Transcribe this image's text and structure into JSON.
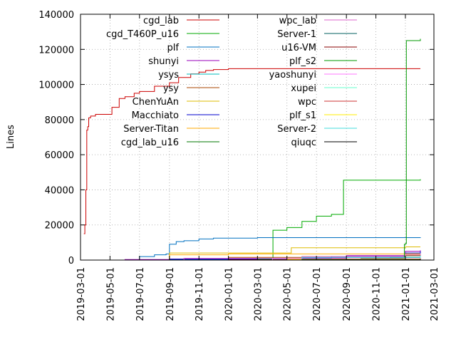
{
  "chart_data": {
    "type": "line",
    "ylabel": "Lines",
    "xlim": [
      "2019-03-01",
      "2021-03-01"
    ],
    "ylim": [
      0,
      140000
    ],
    "grid": true,
    "legend_position": "top (two columns)",
    "x_ticks": [
      "2019-03-01",
      "2019-05-01",
      "2019-07-01",
      "2019-09-01",
      "2019-11-01",
      "2020-01-01",
      "2020-03-01",
      "2020-05-01",
      "2020-07-01",
      "2020-09-01",
      "2020-11-01",
      "2021-01-01",
      "2021-03-01"
    ],
    "y_ticks": [
      "0",
      "20000",
      "40000",
      "60000",
      "80000",
      "100000",
      "120000",
      "140000"
    ],
    "series": [
      {
        "name": "cgd_lab",
        "color": "#cc0000",
        "points": [
          [
            "2019-03-08",
            15000
          ],
          [
            "2019-03-10",
            20000
          ],
          [
            "2019-03-12",
            40000
          ],
          [
            "2019-03-14",
            74000
          ],
          [
            "2019-03-16",
            76000
          ],
          [
            "2019-03-18",
            81000
          ],
          [
            "2019-03-22",
            82000
          ],
          [
            "2019-04-01",
            83000
          ],
          [
            "2019-05-01",
            83000
          ],
          [
            "2019-05-05",
            87000
          ],
          [
            "2019-05-20",
            92000
          ],
          [
            "2019-06-01",
            93000
          ],
          [
            "2019-06-20",
            95000
          ],
          [
            "2019-07-01",
            96000
          ],
          [
            "2019-08-01",
            99000
          ],
          [
            "2019-09-01",
            101000
          ],
          [
            "2019-09-20",
            104000
          ],
          [
            "2019-10-15",
            106000
          ],
          [
            "2019-11-01",
            107000
          ],
          [
            "2019-11-15",
            108000
          ],
          [
            "2019-12-01",
            108500
          ],
          [
            "2020-01-01",
            109000
          ],
          [
            "2021-02-01",
            109000
          ]
        ]
      },
      {
        "name": "cgd_T460P_u16",
        "color": "#00aa00",
        "points": [
          [
            "2020-04-01",
            0
          ],
          [
            "2020-04-02",
            17000
          ],
          [
            "2020-05-01",
            18500
          ],
          [
            "2020-06-01",
            22000
          ],
          [
            "2020-07-01",
            25000
          ],
          [
            "2020-08-01",
            26000
          ],
          [
            "2020-08-25",
            26000
          ],
          [
            "2020-08-26",
            45500
          ],
          [
            "2021-01-15",
            45500
          ],
          [
            "2021-02-01",
            46000
          ]
        ]
      },
      {
        "name": "plf",
        "color": "#0070c0",
        "points": [
          [
            "2019-06-01",
            0
          ],
          [
            "2019-07-01",
            2000
          ],
          [
            "2019-08-01",
            3000
          ],
          [
            "2019-08-25",
            3500
          ],
          [
            "2019-09-01",
            9000
          ],
          [
            "2019-09-15",
            10500
          ],
          [
            "2019-10-01",
            11000
          ],
          [
            "2019-11-01",
            12000
          ],
          [
            "2019-12-01",
            12500
          ],
          [
            "2020-03-01",
            12800
          ],
          [
            "2021-02-01",
            13000
          ]
        ]
      },
      {
        "name": "shunyi",
        "color": "#9900bb",
        "points": [
          [
            "2019-05-01",
            0
          ],
          [
            "2019-06-01",
            300
          ],
          [
            "2019-09-01",
            600
          ],
          [
            "2020-01-01",
            800
          ],
          [
            "2020-06-01",
            1200
          ],
          [
            "2020-09-01",
            2500
          ],
          [
            "2021-01-01",
            5000
          ],
          [
            "2021-02-01",
            5500
          ]
        ]
      },
      {
        "name": "ysys",
        "color": "#00bbbb",
        "points": [
          [
            "2019-05-01",
            0
          ],
          [
            "2019-09-01",
            300
          ],
          [
            "2020-03-01",
            800
          ],
          [
            "2020-09-01",
            1500
          ],
          [
            "2021-01-01",
            2500
          ],
          [
            "2021-02-01",
            3000
          ]
        ]
      },
      {
        "name": "ysy",
        "color": "#aa4400",
        "points": [
          [
            "2019-06-01",
            0
          ],
          [
            "2019-10-01",
            1000
          ],
          [
            "2020-01-01",
            1500
          ],
          [
            "2020-06-01",
            2000
          ],
          [
            "2021-01-01",
            2500
          ],
          [
            "2021-02-01",
            3000
          ]
        ]
      },
      {
        "name": "ChenYuAn",
        "color": "#ddbb00",
        "points": [
          [
            "2019-06-01",
            0
          ],
          [
            "2019-09-01",
            4000
          ],
          [
            "2020-05-01",
            4000
          ],
          [
            "2020-05-10",
            7000
          ],
          [
            "2021-01-01",
            7500
          ],
          [
            "2021-02-01",
            7500
          ]
        ]
      },
      {
        "name": "Macchiato",
        "color": "#0000cc",
        "points": [
          [
            "2019-05-01",
            0
          ],
          [
            "2019-09-01",
            500
          ],
          [
            "2020-03-01",
            1000
          ],
          [
            "2020-08-01",
            2000
          ],
          [
            "2021-01-01",
            4000
          ],
          [
            "2021-02-01",
            5000
          ]
        ]
      },
      {
        "name": "Server-Titan",
        "color": "#ffaa00",
        "points": [
          [
            "2019-05-01",
            0
          ],
          [
            "2019-09-01",
            3000
          ],
          [
            "2020-01-01",
            3500
          ],
          [
            "2021-02-01",
            3500
          ]
        ]
      },
      {
        "name": "cgd_lab_u16",
        "color": "#007700",
        "points": [
          [
            "2019-05-01",
            0
          ],
          [
            "2020-05-01",
            500
          ],
          [
            "2020-10-01",
            1000
          ],
          [
            "2021-01-01",
            1500
          ],
          [
            "2021-02-01",
            2000
          ]
        ]
      },
      {
        "name": "wpc_lab",
        "color": "#dd66cc",
        "points": [
          [
            "2019-05-01",
            0
          ],
          [
            "2019-10-01",
            1000
          ],
          [
            "2020-06-01",
            2000
          ],
          [
            "2021-01-01",
            3000
          ],
          [
            "2021-02-01",
            3500
          ]
        ]
      },
      {
        "name": "Server-1",
        "color": "#005f5f",
        "points": [
          [
            "2019-05-01",
            0
          ],
          [
            "2020-03-01",
            500
          ],
          [
            "2020-12-01",
            1500
          ],
          [
            "2021-02-01",
            2000
          ]
        ]
      },
      {
        "name": "u16-VM",
        "color": "#880000",
        "points": [
          [
            "2019-05-01",
            0
          ],
          [
            "2020-01-01",
            200
          ],
          [
            "2021-02-01",
            500
          ]
        ]
      },
      {
        "name": "plf_s2",
        "color": "#009900",
        "points": [
          [
            "2020-12-20",
            0
          ],
          [
            "2020-12-28",
            1000
          ],
          [
            "2020-12-30",
            9000
          ],
          [
            "2021-01-02",
            9500
          ],
          [
            "2021-01-03",
            125000
          ],
          [
            "2021-02-01",
            126000
          ]
        ]
      },
      {
        "name": "yaoshunyi",
        "color": "#ff77ff",
        "points": [
          [
            "2019-05-01",
            0
          ],
          [
            "2020-04-01",
            800
          ],
          [
            "2021-02-01",
            1500
          ]
        ]
      },
      {
        "name": "xupei",
        "color": "#66ffcc",
        "points": [
          [
            "2019-05-01",
            0
          ],
          [
            "2020-06-01",
            500
          ],
          [
            "2021-02-01",
            1000
          ]
        ]
      },
      {
        "name": "wpc",
        "color": "#cc3333",
        "points": [
          [
            "2019-05-01",
            0
          ],
          [
            "2020-05-01",
            300
          ],
          [
            "2021-02-01",
            600
          ]
        ]
      },
      {
        "name": "plf_s1",
        "color": "#ffee00",
        "points": [
          [
            "2019-05-01",
            0
          ],
          [
            "2020-05-01",
            500
          ],
          [
            "2021-02-01",
            1000
          ]
        ]
      },
      {
        "name": "Server-2",
        "color": "#44dddd",
        "points": [
          [
            "2019-05-01",
            0
          ],
          [
            "2020-06-01",
            1500
          ],
          [
            "2021-02-01",
            2500
          ]
        ]
      },
      {
        "name": "qiuqc",
        "color": "#000000",
        "points": [
          [
            "2019-05-01",
            0
          ],
          [
            "2020-06-01",
            300
          ],
          [
            "2021-02-01",
            800
          ]
        ]
      }
    ]
  }
}
